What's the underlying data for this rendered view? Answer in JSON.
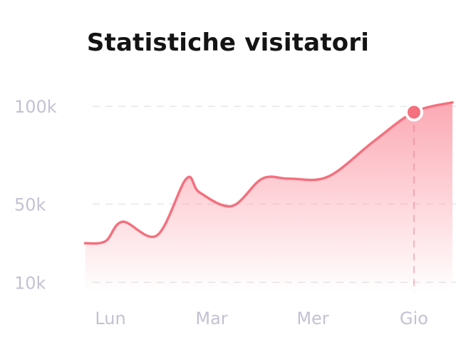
{
  "chart_data": {
    "type": "area",
    "title": "Statistiche visitatori",
    "xlabel": "",
    "ylabel": "",
    "categories": [
      "Lun",
      "Mar",
      "Mer",
      "Gio"
    ],
    "y_tick_labels": [
      "100k",
      "50k",
      "10k"
    ],
    "y_tick_values": [
      100000,
      50000,
      10000
    ],
    "ylim": [
      5000,
      107000
    ],
    "x": [
      -0.25,
      -0.05,
      0.12,
      0.46,
      0.75,
      0.88,
      1.2,
      1.5,
      1.77,
      2.15,
      2.6,
      3.0,
      3.38
    ],
    "y": [
      30000,
      31000,
      41000,
      34000,
      63000,
      56000,
      49000,
      63000,
      63000,
      64000,
      82000,
      97000,
      102000
    ],
    "highlight": {
      "category": "Gio",
      "value": 97000
    },
    "grid": true,
    "colors": {
      "line": "#f4707e",
      "marker": "#f4707e",
      "grid": "#e6e6ee"
    }
  }
}
